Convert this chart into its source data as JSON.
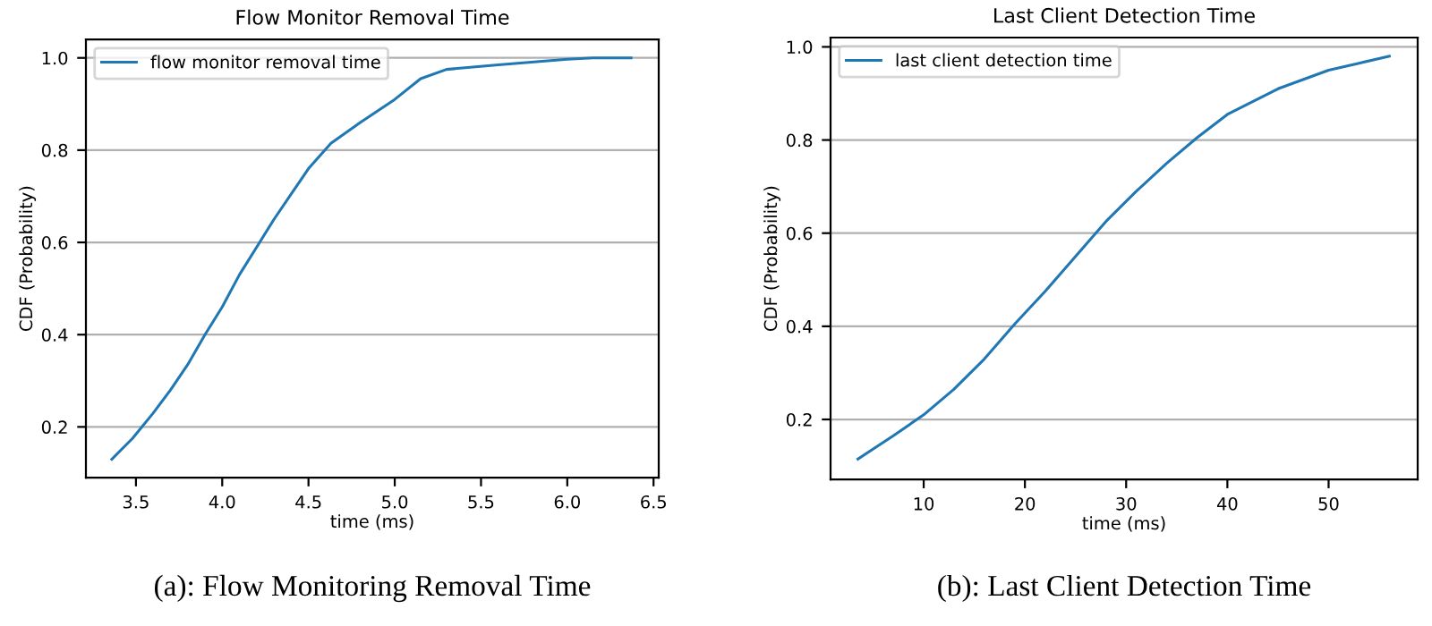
{
  "chart_data": [
    {
      "type": "line",
      "title": "Flow Monitor Removal Time",
      "xlabel": "time (ms)",
      "ylabel": "CDF (Probability)",
      "x": [
        3.36,
        3.48,
        3.6,
        3.7,
        3.8,
        3.9,
        4.0,
        4.1,
        4.2,
        4.3,
        4.4,
        4.5,
        4.63,
        4.8,
        5.0,
        5.15,
        5.3,
        5.6,
        6.0,
        6.15,
        6.37
      ],
      "series": [
        {
          "name": "flow monitor removal time",
          "color": "#1f77b4",
          "values": [
            0.13,
            0.175,
            0.23,
            0.28,
            0.335,
            0.4,
            0.46,
            0.53,
            0.59,
            0.65,
            0.705,
            0.76,
            0.815,
            0.86,
            0.91,
            0.955,
            0.975,
            0.985,
            0.997,
            1.0,
            1.0
          ]
        }
      ],
      "xlim": [
        3.21,
        6.53
      ],
      "ylim": [
        0.09,
        1.04
      ],
      "xticks": [
        3.5,
        {
          "value": 4,
          "label": "4.0"
        },
        4.5,
        {
          "value": 5,
          "label": "5.0"
        },
        5.5,
        {
          "value": 6,
          "label": "6.0"
        },
        6.5
      ],
      "yticks": [
        0.2,
        0.4,
        0.6,
        0.8,
        {
          "value": 1,
          "label": "1.0"
        }
      ],
      "grid": "y",
      "legend": "top left",
      "annotations": [
        "(a): Flow Monitoring Removal Time"
      ]
    },
    {
      "type": "line",
      "title": "Last Client Detection Time",
      "xlabel": "time (ms)",
      "ylabel": "CDF (Probability)",
      "x": [
        3.5,
        7,
        10,
        13,
        16,
        19,
        22,
        25,
        28,
        31,
        34,
        37,
        40,
        45,
        50,
        53,
        56
      ],
      "series": [
        {
          "name": "last client detection time",
          "color": "#1f77b4",
          "values": [
            0.115,
            0.165,
            0.21,
            0.265,
            0.33,
            0.405,
            0.475,
            0.55,
            0.625,
            0.69,
            0.75,
            0.805,
            0.855,
            0.91,
            0.95,
            0.965,
            0.98
          ]
        }
      ],
      "xlim": [
        0.8,
        58.8
      ],
      "ylim": [
        0.071,
        1.02
      ],
      "xticks": [
        10,
        20,
        30,
        40,
        50
      ],
      "yticks": [
        0.2,
        0.4,
        0.6,
        0.8,
        {
          "value": 1,
          "label": "1.0"
        }
      ],
      "grid": "y",
      "legend": "top left",
      "annotations": [
        "(b): Last Client Detection Time"
      ]
    }
  ]
}
